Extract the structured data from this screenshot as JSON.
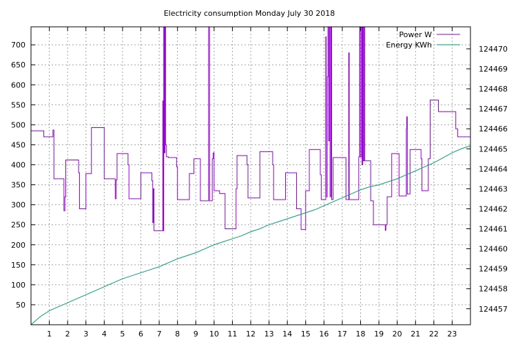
{
  "chart_data": {
    "type": "line",
    "title": "Electricity consumption Monday July 30 2018",
    "x_ticks": [
      "1",
      "2",
      "3",
      "4",
      "5",
      "6",
      "7",
      "8",
      "9",
      "10",
      "11",
      "12",
      "13",
      "14",
      "15",
      "16",
      "17",
      "18",
      "19",
      "20",
      "21",
      "22",
      "23"
    ],
    "xlim": [
      0,
      24
    ],
    "y_left_ticks": [
      "50",
      "100",
      "150",
      "200",
      "250",
      "300",
      "350",
      "400",
      "450",
      "500",
      "550",
      "600",
      "650",
      "700"
    ],
    "ylim_left": [
      0,
      745
    ],
    "y_right_ticks": [
      "124457",
      "124458",
      "124459",
      "124460",
      "124461",
      "124462",
      "124463",
      "124464",
      "124465",
      "124466",
      "124467",
      "124468",
      "124469",
      "124470"
    ],
    "ylim_right": [
      124456.2,
      124471.1
    ],
    "grid": true,
    "legend_position": "top-right",
    "series": [
      {
        "name": "Power W",
        "axis": "left",
        "color": "#9400d3",
        "points": [
          [
            0,
            485
          ],
          [
            0.7,
            485
          ],
          [
            0.7,
            470
          ],
          [
            1.2,
            470
          ],
          [
            1.2,
            487
          ],
          [
            1.25,
            487
          ],
          [
            1.25,
            365
          ],
          [
            1.8,
            365
          ],
          [
            1.8,
            285
          ],
          [
            1.85,
            285
          ],
          [
            1.85,
            320
          ],
          [
            1.9,
            320
          ],
          [
            1.9,
            412
          ],
          [
            2.6,
            412
          ],
          [
            2.6,
            380
          ],
          [
            2.65,
            380
          ],
          [
            2.65,
            290
          ],
          [
            3.0,
            290
          ],
          [
            3.0,
            378
          ],
          [
            3.3,
            378
          ],
          [
            3.3,
            493
          ],
          [
            4.0,
            493
          ],
          [
            4.0,
            365
          ],
          [
            4.6,
            365
          ],
          [
            4.6,
            315
          ],
          [
            4.65,
            315
          ],
          [
            4.65,
            362
          ],
          [
            4.7,
            362
          ],
          [
            4.7,
            428
          ],
          [
            5.3,
            428
          ],
          [
            5.3,
            400
          ],
          [
            5.35,
            400
          ],
          [
            5.35,
            315
          ],
          [
            6.0,
            315
          ],
          [
            6.0,
            380
          ],
          [
            6.6,
            380
          ],
          [
            6.6,
            360
          ],
          [
            6.65,
            360
          ],
          [
            6.65,
            255
          ],
          [
            6.68,
            255
          ],
          [
            6.68,
            340
          ],
          [
            6.72,
            340
          ],
          [
            6.72,
            235
          ],
          [
            7.2,
            235
          ],
          [
            7.2,
            560
          ],
          [
            7.22,
            560
          ],
          [
            7.22,
            235
          ],
          [
            7.25,
            235
          ],
          [
            7.25,
            745
          ],
          [
            7.28,
            745
          ],
          [
            7.28,
            430
          ],
          [
            7.32,
            430
          ],
          [
            7.32,
            745
          ],
          [
            7.35,
            745
          ],
          [
            7.35,
            450
          ],
          [
            7.4,
            450
          ],
          [
            7.4,
            420
          ],
          [
            7.5,
            420
          ],
          [
            7.5,
            418
          ],
          [
            7.95,
            418
          ],
          [
            7.95,
            395
          ],
          [
            8.0,
            395
          ],
          [
            8.0,
            313
          ],
          [
            8.65,
            313
          ],
          [
            8.65,
            378
          ],
          [
            8.9,
            378
          ],
          [
            8.9,
            415
          ],
          [
            9.25,
            415
          ],
          [
            9.25,
            310
          ],
          [
            9.7,
            310
          ],
          [
            9.7,
            745
          ],
          [
            9.75,
            745
          ],
          [
            9.75,
            310
          ],
          [
            9.9,
            310
          ],
          [
            9.9,
            415
          ],
          [
            9.95,
            415
          ],
          [
            9.95,
            430
          ],
          [
            10.0,
            430
          ],
          [
            10.0,
            335
          ],
          [
            10.3,
            335
          ],
          [
            10.3,
            328
          ],
          [
            10.6,
            328
          ],
          [
            10.6,
            240
          ],
          [
            11.2,
            240
          ],
          [
            11.2,
            340
          ],
          [
            11.25,
            340
          ],
          [
            11.25,
            423
          ],
          [
            11.8,
            423
          ],
          [
            11.8,
            400
          ],
          [
            11.85,
            400
          ],
          [
            11.85,
            317
          ],
          [
            12.5,
            317
          ],
          [
            12.5,
            433
          ],
          [
            13.2,
            433
          ],
          [
            13.2,
            400
          ],
          [
            13.25,
            400
          ],
          [
            13.25,
            313
          ],
          [
            13.9,
            313
          ],
          [
            13.9,
            380
          ],
          [
            14.5,
            380
          ],
          [
            14.5,
            290
          ],
          [
            14.75,
            290
          ],
          [
            14.75,
            238
          ],
          [
            15.0,
            238
          ],
          [
            15.0,
            335
          ],
          [
            15.2,
            335
          ],
          [
            15.2,
            438
          ],
          [
            15.8,
            438
          ],
          [
            15.8,
            375
          ],
          [
            15.85,
            375
          ],
          [
            15.85,
            313
          ],
          [
            16.1,
            313
          ],
          [
            16.1,
            720
          ],
          [
            16.12,
            720
          ],
          [
            16.12,
            320
          ],
          [
            16.18,
            320
          ],
          [
            16.18,
            620
          ],
          [
            16.22,
            620
          ],
          [
            16.22,
            745
          ],
          [
            16.25,
            745
          ],
          [
            16.25,
            460
          ],
          [
            16.3,
            460
          ],
          [
            16.3,
            745
          ],
          [
            16.33,
            745
          ],
          [
            16.33,
            320
          ],
          [
            16.38,
            320
          ],
          [
            16.38,
            745
          ],
          [
            16.42,
            745
          ],
          [
            16.42,
            313
          ],
          [
            16.5,
            313
          ],
          [
            16.5,
            418
          ],
          [
            17.2,
            418
          ],
          [
            17.2,
            313
          ],
          [
            17.35,
            313
          ],
          [
            17.35,
            680
          ],
          [
            17.38,
            680
          ],
          [
            17.38,
            313
          ],
          [
            17.9,
            313
          ],
          [
            17.9,
            420
          ],
          [
            17.95,
            420
          ],
          [
            17.95,
            745
          ],
          [
            17.98,
            745
          ],
          [
            17.98,
            420
          ],
          [
            18.05,
            420
          ],
          [
            18.05,
            745
          ],
          [
            18.08,
            745
          ],
          [
            18.08,
            400
          ],
          [
            18.12,
            400
          ],
          [
            18.12,
            745
          ],
          [
            18.15,
            745
          ],
          [
            18.15,
            410
          ],
          [
            18.2,
            410
          ],
          [
            18.2,
            745
          ],
          [
            18.23,
            745
          ],
          [
            18.23,
            410
          ],
          [
            18.55,
            410
          ],
          [
            18.55,
            310
          ],
          [
            18.7,
            310
          ],
          [
            18.7,
            250
          ],
          [
            19.35,
            250
          ],
          [
            19.35,
            236
          ],
          [
            19.38,
            236
          ],
          [
            19.38,
            250
          ],
          [
            19.45,
            250
          ],
          [
            19.45,
            320
          ],
          [
            19.7,
            320
          ],
          [
            19.7,
            428
          ],
          [
            20.1,
            428
          ],
          [
            20.1,
            322
          ],
          [
            20.5,
            322
          ],
          [
            20.5,
            490
          ],
          [
            20.52,
            490
          ],
          [
            20.52,
            520
          ],
          [
            20.55,
            520
          ],
          [
            20.55,
            327
          ],
          [
            20.7,
            327
          ],
          [
            20.7,
            438
          ],
          [
            21.3,
            438
          ],
          [
            21.3,
            415
          ],
          [
            21.35,
            415
          ],
          [
            21.35,
            335
          ],
          [
            21.7,
            335
          ],
          [
            21.7,
            415
          ],
          [
            21.8,
            415
          ],
          [
            21.8,
            562
          ],
          [
            22.25,
            562
          ],
          [
            22.25,
            533
          ],
          [
            23.2,
            533
          ],
          [
            23.2,
            490
          ],
          [
            23.3,
            490
          ],
          [
            23.3,
            470
          ],
          [
            24,
            470
          ]
        ]
      },
      {
        "name": "Energy KWh",
        "axis": "right",
        "color": "#009e73",
        "points": [
          [
            0,
            124456.2
          ],
          [
            0.5,
            124456.6
          ],
          [
            1,
            124456.9
          ],
          [
            1.5,
            124457.1
          ],
          [
            2,
            124457.3
          ],
          [
            2.5,
            124457.5
          ],
          [
            3,
            124457.7
          ],
          [
            3.5,
            124457.9
          ],
          [
            4,
            124458.1
          ],
          [
            4.5,
            124458.3
          ],
          [
            5,
            124458.5
          ],
          [
            5.5,
            124458.65
          ],
          [
            6,
            124458.8
          ],
          [
            6.5,
            124458.95
          ],
          [
            7,
            124459.1
          ],
          [
            7.5,
            124459.3
          ],
          [
            8,
            124459.5
          ],
          [
            8.5,
            124459.65
          ],
          [
            9,
            124459.8
          ],
          [
            9.5,
            124460.0
          ],
          [
            10,
            124460.2
          ],
          [
            10.5,
            124460.35
          ],
          [
            11,
            124460.5
          ],
          [
            11.5,
            124460.65
          ],
          [
            12,
            124460.85
          ],
          [
            12.5,
            124461.0
          ],
          [
            13,
            124461.2
          ],
          [
            13.5,
            124461.35
          ],
          [
            14,
            124461.5
          ],
          [
            14.5,
            124461.65
          ],
          [
            15,
            124461.8
          ],
          [
            15.5,
            124461.95
          ],
          [
            16,
            124462.15
          ],
          [
            16.5,
            124462.35
          ],
          [
            17,
            124462.55
          ],
          [
            17.5,
            124462.75
          ],
          [
            18,
            124462.95
          ],
          [
            18.5,
            124463.1
          ],
          [
            19,
            124463.2
          ],
          [
            19.5,
            124463.35
          ],
          [
            20,
            124463.5
          ],
          [
            20.5,
            124463.7
          ],
          [
            21,
            124463.9
          ],
          [
            21.5,
            124464.1
          ],
          [
            22,
            124464.3
          ],
          [
            22.5,
            124464.55
          ],
          [
            23,
            124464.8
          ],
          [
            23.5,
            124465.0
          ],
          [
            24,
            124465.15
          ]
        ]
      }
    ]
  }
}
